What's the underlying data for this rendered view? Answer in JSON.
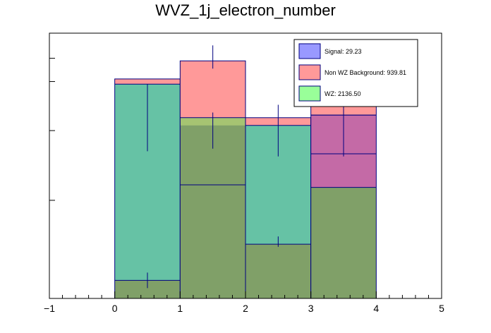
{
  "chart_data": {
    "type": "bar",
    "title": "WVZ_1j_electron_number",
    "xlabel": "",
    "ylabel": "",
    "xlim": [
      -1,
      5
    ],
    "ylim": [
      0,
      1.0
    ],
    "x_ticks": [
      "−1",
      "0",
      "1",
      "2",
      "3",
      "4",
      "5"
    ],
    "bins": [
      [
        0,
        1
      ],
      [
        1,
        2
      ],
      [
        2,
        3
      ],
      [
        3,
        4
      ]
    ],
    "stack_order": [
      "Non WZ Background",
      "WZ",
      "Signal"
    ],
    "series": [
      {
        "name": "Non WZ Background",
        "color": "#ff9999",
        "values": [
          0.07,
          0.44,
          0.21,
          0.43
        ]
      },
      {
        "name": "WZ",
        "color": "#99ff99",
        "values": [
          0.83,
          0.67,
          0.57,
          0.0
        ]
      },
      {
        "name": "Signal",
        "color": "#9999ff",
        "values": [
          0.03,
          0.07,
          0.04,
          0.22
        ]
      }
    ],
    "visible_fills": {
      "total_bg": [
        0.85,
        0.92,
        0.7,
        0.98
      ],
      "wz_top": [
        0.83,
        0.7,
        0.67,
        0.71
      ],
      "wz_inner": [
        0.07,
        0.44,
        0.21,
        0.43
      ],
      "signal_band": [
        null,
        null,
        null,
        [
          0.71,
          0.56
        ]
      ]
    },
    "error_bars": [
      {
        "x": 0.5,
        "values": [
          [
            0.83,
            0.57
          ],
          [
            0.1,
            0.04
          ]
        ]
      },
      {
        "x": 1.5,
        "values": [
          [
            0.98,
            0.89
          ],
          [
            0.72,
            0.58
          ]
        ]
      },
      {
        "x": 2.5,
        "values": [
          [
            0.75,
            0.55
          ],
          [
            0.24,
            0.2
          ]
        ]
      },
      {
        "x": 3.5,
        "values": [
          [
            0.87,
            0.55
          ]
        ]
      }
    ],
    "legend": {
      "placement": "top-right",
      "entries": [
        {
          "label": "Signal: 29.23",
          "color": "#9999ff"
        },
        {
          "label": "Non WZ Background: 939.81",
          "color": "#ff9999"
        },
        {
          "label": "WZ: 2136.50",
          "color": "#99ff99"
        }
      ]
    }
  },
  "colors": {
    "background_total": "#ff9999",
    "wz_fill": "#99ff99",
    "wz_dark": "#66c2a5",
    "mixed": "#a6c472",
    "olive": "#80a068",
    "signal_band": "#c46aa6",
    "outline": "#000080",
    "error": "#000080"
  }
}
